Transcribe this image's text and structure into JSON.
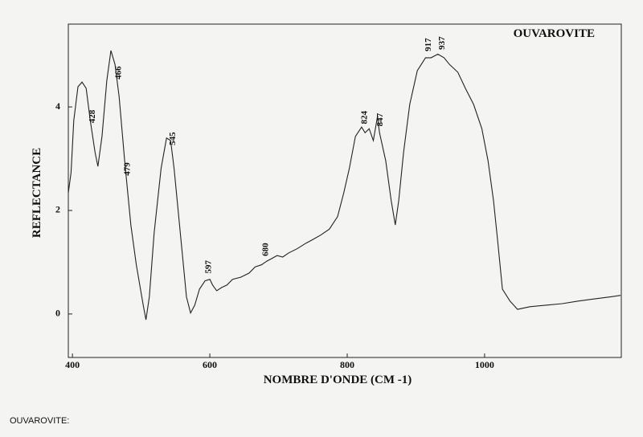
{
  "chart_data": {
    "type": "line",
    "title": "OUVAROVITE",
    "caption": "OUVAROVITE:",
    "x_label": "NOMBRE D'ONDE (CM -1)",
    "y_label": "REFLECTANCE",
    "xlim": [
      394,
      1199
    ],
    "ylim": [
      -0.84,
      5.6
    ],
    "xticks": [
      400,
      600,
      800,
      1000
    ],
    "yticks": [
      0,
      2,
      4
    ],
    "x": [
      394,
      398,
      402,
      408,
      414,
      420,
      426,
      433,
      437,
      443,
      450,
      456,
      462,
      468,
      476,
      485,
      493,
      503,
      507,
      512,
      519,
      529,
      537,
      543,
      548,
      557,
      566,
      572,
      578,
      585,
      593,
      600,
      604,
      610,
      617,
      625,
      633,
      645,
      657,
      666,
      675,
      683,
      690,
      698,
      706,
      715,
      727,
      739,
      750,
      762,
      774,
      786,
      795,
      803,
      812,
      821,
      826,
      832,
      838,
      844,
      847,
      856,
      864,
      870,
      875,
      882,
      891,
      902,
      914,
      922,
      932,
      941,
      949,
      961,
      972,
      984,
      996,
      1005,
      1013,
      1019,
      1026,
      1037,
      1048,
      1066,
      1089,
      1113,
      1136,
      1159,
      1183,
      1198
    ],
    "series": [
      {
        "name": "OUVAROVITE",
        "color": "#222222",
        "values": [
          2.34,
          2.73,
          3.74,
          4.39,
          4.48,
          4.36,
          3.74,
          3.12,
          2.85,
          3.43,
          4.51,
          5.09,
          4.82,
          4.2,
          2.96,
          1.72,
          0.95,
          0.17,
          -0.11,
          0.33,
          1.57,
          2.81,
          3.4,
          3.35,
          2.81,
          1.57,
          0.33,
          0.02,
          0.17,
          0.48,
          0.64,
          0.67,
          0.56,
          0.45,
          0.51,
          0.56,
          0.67,
          0.71,
          0.79,
          0.91,
          0.95,
          1.02,
          1.07,
          1.13,
          1.1,
          1.18,
          1.26,
          1.36,
          1.44,
          1.53,
          1.64,
          1.88,
          2.34,
          2.81,
          3.43,
          3.61,
          3.5,
          3.58,
          3.35,
          3.81,
          3.5,
          2.96,
          2.19,
          1.72,
          2.19,
          3.12,
          4.05,
          4.7,
          4.95,
          4.95,
          5.02,
          4.95,
          4.82,
          4.67,
          4.36,
          4.05,
          3.58,
          2.96,
          2.19,
          1.41,
          0.48,
          0.25,
          0.09,
          0.14,
          0.17,
          0.2,
          0.25,
          0.29,
          0.33,
          0.36
        ]
      }
    ],
    "peaks": [
      428,
      466,
      479,
      545,
      597,
      680,
      824,
      847,
      917,
      937
    ]
  }
}
